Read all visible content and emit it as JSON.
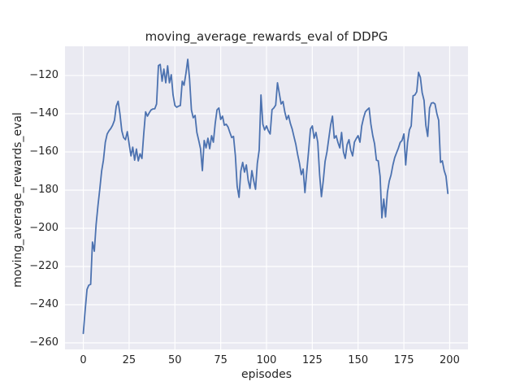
{
  "style": {
    "figure_bg": "#ffffff",
    "plot_bg": "#eaeaf2",
    "grid_color": "#ffffff",
    "line_color": "#4c72b0",
    "text_color": "#262626"
  },
  "chart_data": {
    "type": "line",
    "title": "moving_average_rewards_eval of DDPG",
    "xlabel": "episodes",
    "ylabel": "moving_average_rewards_eval",
    "legend": false,
    "grid": true,
    "xlim": [
      -10,
      210
    ],
    "ylim": [
      -263.4,
      -104.7
    ],
    "xticks": [
      0,
      25,
      50,
      75,
      100,
      125,
      150,
      175,
      200
    ],
    "yticks": [
      -120,
      -140,
      -160,
      -180,
      -200,
      -220,
      -240,
      -260
    ],
    "x": [
      0,
      1,
      2,
      3,
      4,
      5,
      6,
      7,
      8,
      9,
      10,
      11,
      12,
      13,
      14,
      15,
      16,
      17,
      18,
      19,
      20,
      21,
      22,
      23,
      24,
      25,
      26,
      27,
      28,
      29,
      30,
      31,
      32,
      33,
      34,
      35,
      36,
      37,
      38,
      39,
      40,
      41,
      42,
      43,
      44,
      45,
      46,
      47,
      48,
      49,
      50,
      51,
      52,
      53,
      54,
      55,
      56,
      57,
      58,
      59,
      60,
      61,
      62,
      63,
      64,
      65,
      66,
      67,
      68,
      69,
      70,
      71,
      72,
      73,
      74,
      75,
      76,
      77,
      78,
      79,
      80,
      81,
      82,
      83,
      84,
      85,
      86,
      87,
      88,
      89,
      90,
      91,
      92,
      93,
      94,
      95,
      96,
      97,
      98,
      99,
      100,
      101,
      102,
      103,
      104,
      105,
      106,
      107,
      108,
      109,
      110,
      111,
      112,
      113,
      114,
      115,
      116,
      117,
      118,
      119,
      120,
      121,
      122,
      123,
      124,
      125,
      126,
      127,
      128,
      129,
      130,
      131,
      132,
      133,
      134,
      135,
      136,
      137,
      138,
      139,
      140,
      141,
      142,
      143,
      144,
      145,
      146,
      147,
      148,
      149,
      150,
      151,
      152,
      153,
      154,
      155,
      156,
      157,
      158,
      159,
      160,
      161,
      162,
      163,
      164,
      165,
      166,
      167,
      168,
      169,
      170,
      171,
      172,
      173,
      174,
      175,
      176,
      177,
      178,
      179,
      180,
      181,
      182,
      183,
      184,
      185,
      186,
      187,
      188,
      189,
      190,
      191,
      192,
      193,
      194,
      195,
      196,
      197,
      198,
      199
    ],
    "values": [
      -255.0,
      -243.0,
      -232.0,
      -229.8,
      -229.3,
      -207.2,
      -212.0,
      -198.0,
      -188.0,
      -179.6,
      -170.0,
      -164.3,
      -155.0,
      -150.6,
      -149.0,
      -147.7,
      -146.0,
      -143.4,
      -136.0,
      -133.5,
      -140.0,
      -148.9,
      -152.5,
      -153.6,
      -149.4,
      -155.7,
      -162.1,
      -157.5,
      -164.3,
      -158.5,
      -164.7,
      -161.0,
      -163.4,
      -150.6,
      -139.0,
      -141.3,
      -139.5,
      -138.0,
      -137.5,
      -137.4,
      -134.9,
      -114.8,
      -114.2,
      -123.0,
      -116.6,
      -123.8,
      -114.9,
      -123.8,
      -119.6,
      -130.2,
      -135.7,
      -136.6,
      -136.0,
      -135.7,
      -123.0,
      -125.1,
      -119.0,
      -111.5,
      -121.7,
      -138.0,
      -142.1,
      -140.9,
      -149.8,
      -154.0,
      -158.3,
      -169.8,
      -154.0,
      -157.9,
      -152.8,
      -158.3,
      -151.5,
      -154.9,
      -145.0,
      -138.0,
      -137.0,
      -143.0,
      -141.3,
      -146.0,
      -145.5,
      -147.0,
      -149.8,
      -152.5,
      -151.9,
      -162.0,
      -178.0,
      -183.8,
      -170.0,
      -165.5,
      -170.6,
      -166.8,
      -175.0,
      -179.1,
      -169.8,
      -175.0,
      -179.6,
      -166.0,
      -159.0,
      -130.2,
      -145.5,
      -148.5,
      -146.4,
      -149.0,
      -150.6,
      -137.9,
      -137.0,
      -135.5,
      -123.8,
      -129.4,
      -134.9,
      -133.6,
      -139.0,
      -143.0,
      -140.9,
      -145.0,
      -148.0,
      -152.0,
      -156.0,
      -161.3,
      -166.0,
      -171.9,
      -169.0,
      -181.3,
      -170.0,
      -159.1,
      -148.0,
      -146.4,
      -152.8,
      -149.8,
      -155.0,
      -172.0,
      -183.4,
      -175.0,
      -165.0,
      -160.0,
      -152.8,
      -146.0,
      -141.3,
      -152.8,
      -151.5,
      -155.0,
      -157.9,
      -149.8,
      -160.0,
      -163.4,
      -156.2,
      -153.6,
      -159.1,
      -162.1,
      -154.9,
      -153.0,
      -151.5,
      -154.9,
      -146.4,
      -142.1,
      -139.0,
      -137.9,
      -137.0,
      -145.5,
      -151.5,
      -155.7,
      -164.3,
      -164.7,
      -172.7,
      -194.5,
      -184.7,
      -194.0,
      -181.3,
      -175.3,
      -172.0,
      -166.8,
      -163.0,
      -160.4,
      -158.0,
      -155.0,
      -154.0,
      -150.6,
      -166.8,
      -155.0,
      -148.5,
      -146.4,
      -130.6,
      -130.2,
      -128.5,
      -118.3,
      -121.0,
      -129.0,
      -133.0,
      -146.0,
      -151.9,
      -137.0,
      -134.5,
      -134.2,
      -134.9,
      -140.0,
      -143.4,
      -165.5,
      -164.7,
      -169.8,
      -172.7,
      -181.7
    ]
  }
}
